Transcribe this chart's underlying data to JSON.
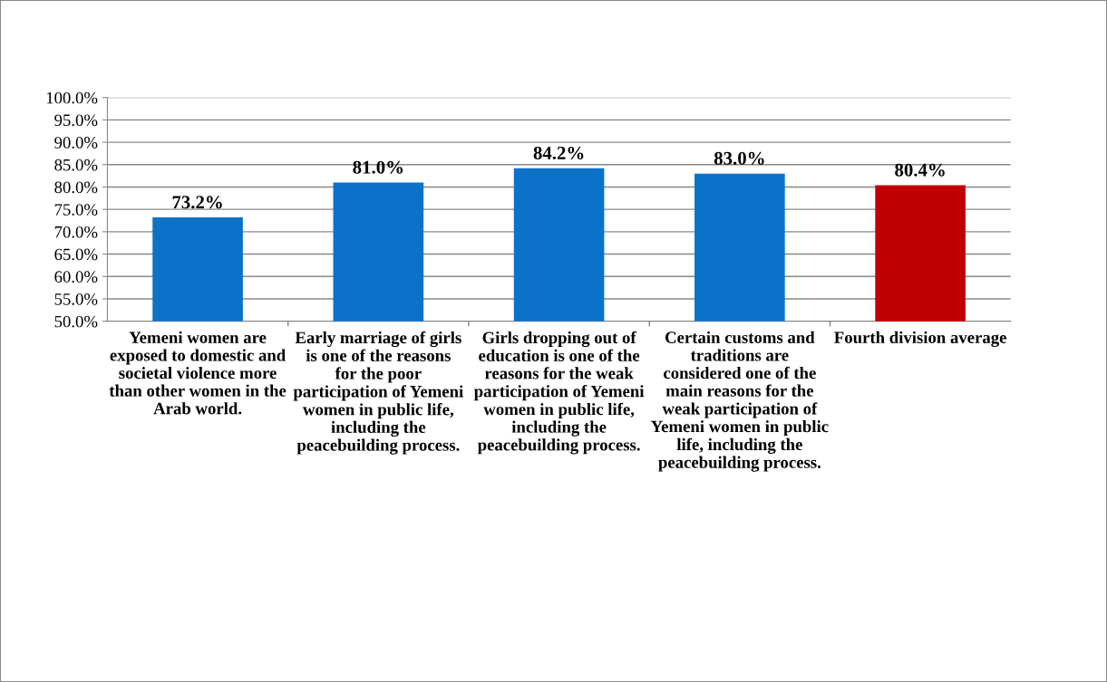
{
  "chart_data": {
    "type": "bar",
    "categories": [
      "Yemeni women are exposed to domestic and societal violence more than other women in the Arab world.",
      "Early marriage of girls is one of the reasons for the poor participation of Yemeni women in public life, including the peacebuilding process.",
      "Girls dropping out of education is one of the reasons for the weak participation of Yemeni women in public life, including the peacebuilding process.",
      "Certain customs and traditions are considered one of the main reasons for the weak participation of Yemeni women in public life, including the peacebuilding process.",
      "Fourth division average"
    ],
    "values": [
      73.2,
      81.0,
      84.2,
      83.0,
      80.4
    ],
    "colors": [
      "#0b72c9",
      "#0b72c9",
      "#0b72c9",
      "#0b72c9",
      "#c00000"
    ],
    "value_labels": [
      "73.2%",
      "81.0%",
      "84.2%",
      "83.0%",
      "80.4%"
    ],
    "ylim": [
      50,
      100
    ],
    "yticks": [
      {
        "value": 50,
        "label": "50.0%"
      },
      {
        "value": 55,
        "label": "55.0%"
      },
      {
        "value": 60,
        "label": "60.0%"
      },
      {
        "value": 65,
        "label": "65.0%"
      },
      {
        "value": 70,
        "label": "70.0%"
      },
      {
        "value": 75,
        "label": "75.0%"
      },
      {
        "value": 80,
        "label": "80.0%"
      },
      {
        "value": 85,
        "label": "85.0%"
      },
      {
        "value": 90,
        "label": "90.0%"
      },
      {
        "value": 95,
        "label": "95.0%"
      },
      {
        "value": 100,
        "label": "100.0%"
      }
    ],
    "grid": "y"
  }
}
